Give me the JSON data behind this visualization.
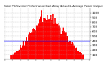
{
  "title": "Solar PV/Inverter Performance East Array Actual & Average Power Output",
  "bar_color": "#FF0000",
  "avg_line_color": "#0000FF",
  "background_color": "#FFFFFF",
  "grid_color": "#AAAAAA",
  "num_bars": 84,
  "avg_value": 400,
  "ylim": [
    0,
    1100
  ],
  "yticks": [
    100,
    200,
    300,
    400,
    500,
    600,
    700,
    800,
    900,
    1000
  ],
  "ylabel_fontsize": 3.2,
  "title_fontsize": 2.8,
  "xtick_fontsize": 2.5
}
